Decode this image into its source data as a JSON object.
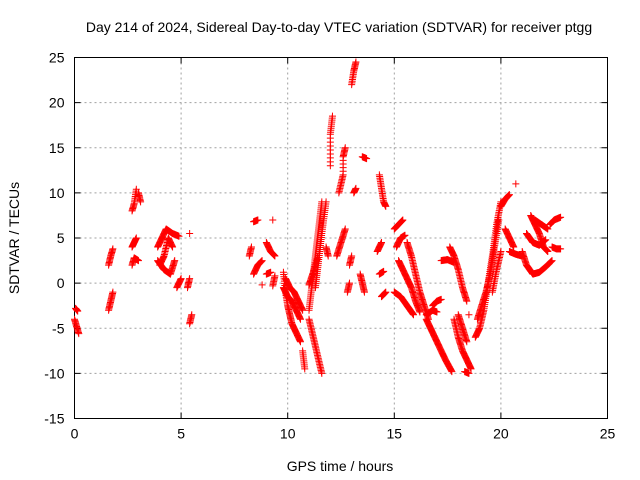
{
  "colors": {
    "series": "#ff0000",
    "grid": "#a0a0a0",
    "axis": "#000000",
    "background": "#ffffff"
  },
  "chart_data": {
    "type": "scatter",
    "title": "Day 214 of 2024, Sidereal Day-to-day VTEC variation (SDTVAR) for receiver ptgg",
    "xlabel": "GPS time / hours",
    "ylabel": "SDTVAR / TECUs",
    "xlim": [
      0,
      25
    ],
    "ylim": [
      -15,
      25
    ],
    "grid": true,
    "marker": "plus",
    "xticks": [
      0,
      5,
      10,
      15,
      20,
      25
    ],
    "yticks": [
      -15,
      -10,
      -5,
      0,
      5,
      10,
      15,
      20,
      25
    ],
    "xtick_labels": [
      "0",
      "5",
      "10",
      "15",
      "20",
      "25"
    ],
    "ytick_labels": [
      "-15",
      "-10",
      "-5",
      "0",
      "5",
      "10",
      "15",
      "20",
      "25"
    ],
    "series": [
      {
        "name": "ptgg SDTVAR",
        "segments": [
          [
            [
              0.0,
              -4.0
            ],
            [
              0.1,
              -4.8
            ],
            [
              0.2,
              -5.6
            ]
          ],
          [
            [
              0.05,
              -2.8
            ],
            [
              0.15,
              -3.1
            ]
          ],
          [
            [
              1.6,
              2.0
            ],
            [
              1.7,
              3.0
            ],
            [
              1.8,
              3.8
            ]
          ],
          [
            [
              1.6,
              -3.0
            ],
            [
              1.7,
              -2.0
            ],
            [
              1.8,
              -1.0
            ]
          ],
          [
            [
              2.7,
              2.0
            ],
            [
              2.8,
              2.8
            ],
            [
              3.0,
              2.5
            ]
          ],
          [
            [
              2.7,
              4.0
            ],
            [
              2.8,
              4.5
            ],
            [
              2.9,
              5.0
            ]
          ],
          [
            [
              2.7,
              8.0
            ],
            [
              2.8,
              8.8
            ],
            [
              2.9,
              10.4
            ]
          ],
          [
            [
              3.0,
              10.0
            ],
            [
              3.1,
              9.0
            ]
          ],
          [
            [
              3.9,
              4.0
            ],
            [
              4.1,
              5.0
            ],
            [
              4.3,
              6.0
            ],
            [
              4.6,
              5.5
            ],
            [
              4.9,
              5.2
            ]
          ],
          [
            [
              4.0,
              2.0
            ],
            [
              4.2,
              3.0
            ],
            [
              4.4,
              5.0
            ],
            [
              4.6,
              4.0
            ]
          ],
          [
            [
              3.9,
              2.5
            ],
            [
              4.2,
              1.5
            ],
            [
              4.5,
              1.0
            ],
            [
              4.7,
              2.5
            ]
          ],
          [
            [
              4.8,
              -0.5
            ],
            [
              5.0,
              0.5
            ]
          ],
          [
            [
              5.3,
              -0.5
            ],
            [
              5.4,
              0.5
            ]
          ],
          [
            [
              5.4,
              -4.5
            ],
            [
              5.5,
              -3.5
            ]
          ],
          [
            [
              5.4,
              5.5
            ]
          ],
          [
            [
              8.2,
              3.0
            ],
            [
              8.3,
              4.0
            ]
          ],
          [
            [
              8.4,
              1.0
            ],
            [
              8.6,
              2.0
            ],
            [
              8.8,
              2.5
            ]
          ],
          [
            [
              8.4,
              6.8
            ],
            [
              8.6,
              7.0
            ]
          ],
          [
            [
              9.0,
              4.5
            ],
            [
              9.2,
              3.5
            ],
            [
              9.4,
              3.0
            ]
          ],
          [
            [
              9.0,
              1.0
            ],
            [
              9.2,
              1.2
            ]
          ],
          [
            [
              9.3,
              -0.3
            ],
            [
              9.4,
              0.8
            ]
          ],
          [
            [
              9.3,
              7.0
            ]
          ],
          [
            [
              8.8,
              -0.2
            ]
          ],
          [
            [
              9.8,
              1.2
            ],
            [
              9.9,
              -1.0
            ],
            [
              10.0,
              -2.5
            ],
            [
              10.1,
              -3.5
            ],
            [
              10.2,
              -4.5
            ],
            [
              10.4,
              -5.5
            ],
            [
              10.6,
              -6.5
            ]
          ],
          [
            [
              9.8,
              -0.5
            ],
            [
              10.0,
              -1.5
            ],
            [
              10.2,
              -2.0
            ],
            [
              10.4,
              -3.0
            ],
            [
              10.6,
              -4.0
            ]
          ],
          [
            [
              9.9,
              0.5
            ],
            [
              10.1,
              -0.5
            ],
            [
              10.3,
              -1.0
            ],
            [
              10.5,
              -2.0
            ],
            [
              10.7,
              -3.0
            ]
          ],
          [
            [
              10.7,
              -7.5
            ],
            [
              10.8,
              -9.5
            ]
          ],
          [
            [
              11.0,
              -4.0
            ],
            [
              11.2,
              -6.0
            ],
            [
              11.4,
              -8.0
            ],
            [
              11.6,
              -10.0
            ]
          ],
          [
            [
              11.0,
              -3.0
            ],
            [
              11.1,
              -1.0
            ],
            [
              11.2,
              1.0
            ],
            [
              11.3,
              3.0
            ],
            [
              11.4,
              5.0
            ],
            [
              11.5,
              7.0
            ],
            [
              11.6,
              9.0
            ]
          ],
          [
            [
              11.3,
              -0.5
            ],
            [
              11.4,
              1.5
            ],
            [
              11.5,
              3.5
            ],
            [
              11.6,
              5.5
            ],
            [
              11.8,
              9.0
            ]
          ],
          [
            [
              11.0,
              -0.2
            ],
            [
              11.2,
              1.2
            ],
            [
              11.4,
              2.8
            ]
          ],
          [
            [
              11.8,
              4.0
            ],
            [
              11.9,
              3.0
            ]
          ],
          [
            [
              12.0,
              13.0
            ],
            [
              12.0,
              16.5
            ],
            [
              12.1,
              18.5
            ]
          ],
          [
            [
              12.3,
              3.0
            ],
            [
              12.5,
              4.5
            ],
            [
              12.7,
              6.0
            ]
          ],
          [
            [
              12.4,
              10.0
            ],
            [
              12.6,
              12.0
            ],
            [
              12.6,
              14.0
            ],
            [
              12.7,
              15.0
            ]
          ],
          [
            [
              12.8,
              -1.0
            ],
            [
              12.9,
              0.0
            ]
          ],
          [
            [
              12.9,
              2.0
            ],
            [
              13.0,
              3.0
            ]
          ],
          [
            [
              13.0,
              22.0
            ],
            [
              13.1,
              23.5
            ],
            [
              13.2,
              24.5
            ]
          ],
          [
            [
              13.1,
              10.0
            ],
            [
              13.2,
              10.5
            ]
          ],
          [
            [
              13.5,
              14.0
            ],
            [
              13.7,
              13.8
            ]
          ],
          [
            [
              13.4,
              1.0
            ],
            [
              13.5,
              0.0
            ],
            [
              13.6,
              -1.0
            ]
          ],
          [
            [
              14.2,
              3.5
            ],
            [
              14.4,
              4.5
            ]
          ],
          [
            [
              14.3,
              12.0
            ],
            [
              14.4,
              10.5
            ],
            [
              14.5,
              9.0
            ],
            [
              14.6,
              8.5
            ]
          ],
          [
            [
              14.3,
              1.0
            ],
            [
              14.5,
              1.3
            ]
          ],
          [
            [
              14.4,
              -1.5
            ],
            [
              14.6,
              -1.0
            ]
          ],
          [
            [
              15.0,
              6.0
            ],
            [
              15.2,
              6.5
            ],
            [
              15.4,
              7.0
            ]
          ],
          [
            [
              15.1,
              4.0
            ],
            [
              15.3,
              5.0
            ],
            [
              15.5,
              5.3
            ]
          ],
          [
            [
              15.0,
              -1.0
            ],
            [
              15.3,
              -1.5
            ],
            [
              15.6,
              -2.5
            ],
            [
              15.9,
              -3.5
            ]
          ],
          [
            [
              15.6,
              4.5
            ],
            [
              15.8,
              3.0
            ],
            [
              16.0,
              1.0
            ],
            [
              16.2,
              -1.0
            ],
            [
              16.4,
              -2.5
            ],
            [
              16.6,
              -4.0
            ]
          ],
          [
            [
              15.2,
              2.5
            ],
            [
              15.5,
              1.0
            ],
            [
              15.8,
              -0.5
            ],
            [
              16.0,
              -2.0
            ],
            [
              16.2,
              -3.2
            ]
          ],
          [
            [
              16.5,
              -4.0
            ],
            [
              16.8,
              -5.5
            ],
            [
              17.1,
              -7.0
            ],
            [
              17.4,
              -8.5
            ],
            [
              17.7,
              -9.8
            ]
          ],
          [
            [
              16.5,
              -3.5
            ],
            [
              16.8,
              -3.0
            ],
            [
              17.0,
              -3.2
            ]
          ],
          [
            [
              16.8,
              -2.5
            ],
            [
              17.0,
              -2.0
            ],
            [
              17.2,
              -1.8
            ]
          ],
          [
            [
              17.2,
              2.5
            ],
            [
              17.5,
              2.6
            ],
            [
              17.8,
              2.3
            ]
          ],
          [
            [
              17.6,
              4.0
            ],
            [
              17.8,
              3.0
            ],
            [
              18.0,
              1.5
            ],
            [
              18.2,
              -0.5
            ],
            [
              18.4,
              -2.0
            ]
          ],
          [
            [
              18.0,
              -3.5
            ],
            [
              18.2,
              -5.0
            ],
            [
              18.4,
              -6.5
            ]
          ],
          [
            [
              17.8,
              -4.0
            ],
            [
              18.0,
              -6.0
            ],
            [
              18.2,
              -7.5
            ],
            [
              18.4,
              -8.5
            ],
            [
              18.6,
              -9.5
            ]
          ],
          [
            [
              18.3,
              -9.8
            ],
            [
              18.5,
              -10.0
            ]
          ],
          [
            [
              18.5,
              -3.5
            ]
          ],
          [
            [
              18.8,
              -6.0
            ],
            [
              19.0,
              -5.0
            ],
            [
              19.2,
              -3.0
            ],
            [
              19.4,
              0.0
            ],
            [
              19.6,
              3.0
            ],
            [
              19.8,
              6.5
            ],
            [
              20.0,
              9.0
            ]
          ],
          [
            [
              18.9,
              -4.0
            ],
            [
              19.1,
              -2.5
            ],
            [
              19.3,
              -1.0
            ],
            [
              19.5,
              1.0
            ],
            [
              19.7,
              4.0
            ],
            [
              19.9,
              7.0
            ]
          ],
          [
            [
              19.6,
              -1.0
            ],
            [
              19.8,
              1.5
            ],
            [
              20.0,
              3.5
            ]
          ],
          [
            [
              20.0,
              8.5
            ],
            [
              20.2,
              9.3
            ],
            [
              20.4,
              9.8
            ]
          ],
          [
            [
              20.7,
              11.0
            ]
          ],
          [
            [
              20.2,
              6.0
            ],
            [
              20.4,
              5.0
            ],
            [
              20.6,
              4.0
            ]
          ],
          [
            [
              20.4,
              3.5
            ],
            [
              20.7,
              3.2
            ],
            [
              21.0,
              3.0
            ]
          ],
          [
            [
              21.0,
              3.5
            ],
            [
              21.2,
              2.0
            ],
            [
              21.5,
              1.0
            ],
            [
              21.8,
              1.2
            ],
            [
              22.1,
              1.8
            ],
            [
              22.4,
              2.5
            ]
          ],
          [
            [
              21.2,
              5.5
            ],
            [
              21.5,
              4.5
            ],
            [
              21.8,
              4.2
            ],
            [
              22.1,
              4.8
            ]
          ],
          [
            [
              21.4,
              7.5
            ],
            [
              21.6,
              6.5
            ],
            [
              21.8,
              5.5
            ],
            [
              22.0,
              4.0
            ],
            [
              22.2,
              3.5
            ]
          ],
          [
            [
              21.6,
              7.0
            ],
            [
              21.9,
              6.5
            ],
            [
              22.2,
              6.0
            ]
          ],
          [
            [
              22.3,
              6.5
            ],
            [
              22.5,
              7.0
            ],
            [
              22.8,
              7.3
            ]
          ],
          [
            [
              22.4,
              4.0
            ],
            [
              22.6,
              3.8
            ],
            [
              22.8,
              3.8
            ]
          ]
        ]
      }
    ]
  }
}
